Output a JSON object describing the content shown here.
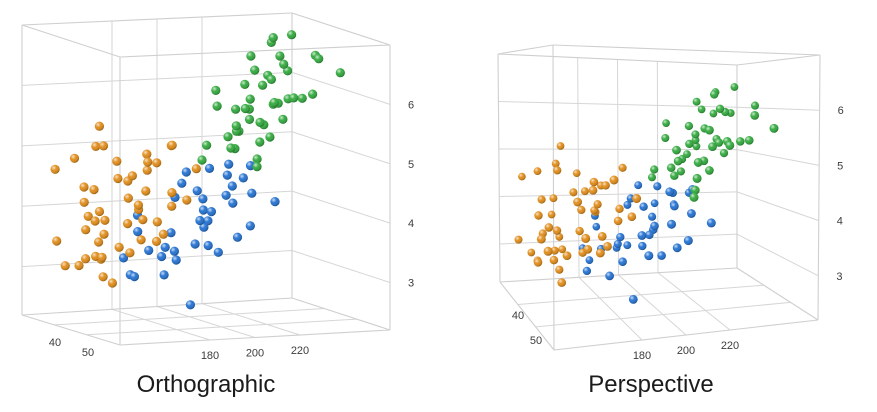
{
  "chart_data": [
    {
      "type": "scatter",
      "title": "Orthographic",
      "projection": "orthographic",
      "x_ticks": [
        180,
        200,
        220
      ],
      "z_ticks": [
        40,
        50
      ],
      "y_ticks": [
        3,
        4,
        5,
        6
      ],
      "grid": true,
      "series": [
        {
          "color": "#E08A14",
          "points": [
            [
              146,
              4.7
            ],
            [
              150,
              4.5
            ],
            [
              148,
              4.2
            ],
            [
              152,
              4.9
            ],
            [
              156,
              5.2
            ],
            [
              160,
              4.8
            ],
            [
              158,
              4.4
            ],
            [
              154,
              4.0
            ],
            [
              162,
              4.1
            ],
            [
              166,
              4.6
            ],
            [
              170,
              5.1
            ],
            [
              164,
              5.4
            ],
            [
              168,
              4.3
            ],
            [
              172,
              4.0
            ],
            [
              174,
              4.5
            ],
            [
              178,
              4.9
            ],
            [
              176,
              5.3
            ],
            [
              180,
              4.7
            ],
            [
              182,
              4.2
            ],
            [
              160,
              3.9
            ],
            [
              150,
              3.8
            ],
            [
              156,
              3.6
            ],
            [
              162,
              3.5
            ],
            [
              166,
              3.9
            ],
            [
              170,
              3.7
            ],
            [
              158,
              3.3
            ],
            [
              152,
              3.4
            ],
            [
              144,
              3.9
            ],
            [
              148,
              3.2
            ],
            [
              154,
              3.0
            ],
            [
              164,
              3.2
            ],
            [
              168,
              3.4
            ],
            [
              174,
              3.8
            ],
            [
              178,
              4.1
            ],
            [
              184,
              4.4
            ],
            [
              186,
              4.9
            ],
            [
              190,
              5.1
            ],
            [
              188,
              4.3
            ],
            [
              172,
              4.8
            ],
            [
              176,
              4.4
            ],
            [
              168,
              5.0
            ],
            [
              160,
              5.1
            ],
            [
              146,
              4.3
            ],
            [
              142,
              4.1
            ],
            [
              140,
              3.6
            ],
            [
              144,
              3.4
            ],
            [
              150,
              3.1
            ],
            [
              158,
              3.0
            ],
            [
              166,
              3.7
            ],
            [
              180,
              4.0
            ]
          ]
        },
        {
          "color": "#1F6FD1",
          "points": [
            [
              180,
              3.9
            ],
            [
              186,
              3.7
            ],
            [
              190,
              4.0
            ],
            [
              194,
              4.2
            ],
            [
              198,
              3.8
            ],
            [
              202,
              4.3
            ],
            [
              204,
              4.0
            ],
            [
              208,
              4.5
            ],
            [
              210,
              4.1
            ],
            [
              212,
              4.6
            ],
            [
              214,
              4.4
            ],
            [
              200,
              4.6
            ],
            [
              196,
              4.4
            ],
            [
              192,
              3.6
            ],
            [
              188,
              3.4
            ],
            [
              184,
              3.3
            ],
            [
              182,
              3.6
            ],
            [
              178,
              3.4
            ],
            [
              176,
              3.1
            ],
            [
              190,
              3.2
            ],
            [
              196,
              3.5
            ],
            [
              206,
              3.7
            ],
            [
              216,
              4.2
            ],
            [
              218,
              4.8
            ],
            [
              220,
              4.3
            ],
            [
              206,
              4.7
            ],
            [
              198,
              4.1
            ],
            [
              174,
              3.2
            ],
            [
              170,
              3.0
            ],
            [
              186,
              2.6
            ],
            [
              194,
              3.3
            ],
            [
              200,
              3.9
            ],
            [
              210,
              3.9
            ],
            [
              222,
              4.5
            ],
            [
              202,
              3.4
            ],
            [
              178,
              2.9
            ],
            [
              192,
              4.5
            ],
            [
              204,
              4.9
            ]
          ]
        },
        {
          "color": "#2EA83A",
          "points": [
            [
              206,
              4.8
            ],
            [
              210,
              5.1
            ],
            [
              214,
              5.3
            ],
            [
              218,
              5.0
            ],
            [
              222,
              5.5
            ],
            [
              226,
              5.2
            ],
            [
              220,
              5.7
            ],
            [
              224,
              5.9
            ],
            [
              228,
              5.6
            ],
            [
              232,
              5.8
            ],
            [
              230,
              6.0
            ],
            [
              236,
              5.7
            ],
            [
              240,
              5.9
            ],
            [
              234,
              6.2
            ],
            [
              238,
              6.4
            ],
            [
              242,
              6.0
            ],
            [
              246,
              6.2
            ],
            [
              226,
              6.1
            ],
            [
              216,
              5.6
            ],
            [
              212,
              5.7
            ],
            [
              208,
              5.3
            ],
            [
              212,
              4.9
            ],
            [
              218,
              5.3
            ],
            [
              224,
              5.3
            ],
            [
              230,
              5.4
            ],
            [
              236,
              5.5
            ],
            [
              222,
              6.3
            ],
            [
              228,
              6.5
            ],
            [
              232,
              6.6
            ],
            [
              250,
              6.4
            ],
            [
              254,
              6.5
            ],
            [
              210,
              5.5
            ],
            [
              216,
              5.9
            ],
            [
              220,
              6.1
            ],
            [
              244,
              6.6
            ],
            [
              238,
              6.7
            ],
            [
              230,
              6.9
            ],
            [
              214,
              5.0
            ],
            [
              226,
              5.8
            ],
            [
              234,
              5.9
            ],
            [
              240,
              6.1
            ],
            [
              204,
              5.1
            ],
            [
              208,
              5.8
            ],
            [
              248,
              6.8
            ]
          ]
        }
      ]
    },
    {
      "type": "scatter",
      "title": "Perspective",
      "projection": "perspective",
      "x_ticks": [
        180,
        200,
        220
      ],
      "z_ticks": [
        40,
        50
      ],
      "y_ticks": [
        3,
        4,
        5,
        6
      ],
      "grid": true,
      "series": [
        {
          "color": "#E08A14",
          "points": [
            [
              146,
              4.7
            ],
            [
              150,
              4.5
            ],
            [
              148,
              4.2
            ],
            [
              152,
              4.9
            ],
            [
              156,
              5.2
            ],
            [
              160,
              4.8
            ],
            [
              158,
              4.4
            ],
            [
              154,
              4.0
            ],
            [
              162,
              4.1
            ],
            [
              166,
              4.6
            ],
            [
              170,
              5.1
            ],
            [
              164,
              5.4
            ],
            [
              168,
              4.3
            ],
            [
              172,
              4.0
            ],
            [
              174,
              4.5
            ],
            [
              178,
              4.9
            ],
            [
              176,
              5.3
            ],
            [
              180,
              4.7
            ],
            [
              182,
              4.2
            ],
            [
              160,
              3.9
            ],
            [
              150,
              3.8
            ],
            [
              156,
              3.6
            ],
            [
              162,
              3.5
            ],
            [
              166,
              3.9
            ],
            [
              170,
              3.7
            ],
            [
              158,
              3.3
            ],
            [
              152,
              3.4
            ],
            [
              144,
              3.9
            ],
            [
              148,
              3.2
            ],
            [
              154,
              3.0
            ],
            [
              164,
              3.2
            ],
            [
              168,
              3.4
            ],
            [
              174,
              3.8
            ],
            [
              178,
              4.1
            ],
            [
              184,
              4.4
            ],
            [
              186,
              4.9
            ],
            [
              190,
              5.1
            ],
            [
              188,
              4.3
            ],
            [
              172,
              4.8
            ],
            [
              176,
              4.4
            ],
            [
              168,
              5.0
            ],
            [
              160,
              5.1
            ],
            [
              146,
              4.3
            ],
            [
              142,
              4.1
            ],
            [
              140,
              3.6
            ],
            [
              144,
              3.4
            ],
            [
              150,
              3.1
            ],
            [
              158,
              3.0
            ],
            [
              166,
              3.7
            ],
            [
              180,
              4.0
            ]
          ]
        },
        {
          "color": "#1F6FD1",
          "points": [
            [
              180,
              3.9
            ],
            [
              186,
              3.7
            ],
            [
              190,
              4.0
            ],
            [
              194,
              4.2
            ],
            [
              198,
              3.8
            ],
            [
              202,
              4.3
            ],
            [
              204,
              4.0
            ],
            [
              208,
              4.5
            ],
            [
              210,
              4.1
            ],
            [
              212,
              4.6
            ],
            [
              214,
              4.4
            ],
            [
              200,
              4.6
            ],
            [
              196,
              4.4
            ],
            [
              192,
              3.6
            ],
            [
              188,
              3.4
            ],
            [
              184,
              3.3
            ],
            [
              182,
              3.6
            ],
            [
              178,
              3.4
            ],
            [
              176,
              3.1
            ],
            [
              190,
              3.2
            ],
            [
              196,
              3.5
            ],
            [
              206,
              3.7
            ],
            [
              216,
              4.2
            ],
            [
              218,
              4.8
            ],
            [
              220,
              4.3
            ],
            [
              206,
              4.7
            ],
            [
              198,
              4.1
            ],
            [
              174,
              3.2
            ],
            [
              170,
              3.0
            ],
            [
              186,
              2.6
            ],
            [
              194,
              3.3
            ],
            [
              200,
              3.9
            ],
            [
              210,
              3.9
            ],
            [
              222,
              4.5
            ],
            [
              202,
              3.4
            ],
            [
              178,
              2.9
            ],
            [
              192,
              4.5
            ],
            [
              204,
              4.9
            ]
          ]
        },
        {
          "color": "#2EA83A",
          "points": [
            [
              206,
              4.8
            ],
            [
              210,
              5.1
            ],
            [
              214,
              5.3
            ],
            [
              218,
              5.0
            ],
            [
              222,
              5.5
            ],
            [
              226,
              5.2
            ],
            [
              220,
              5.7
            ],
            [
              224,
              5.9
            ],
            [
              228,
              5.6
            ],
            [
              232,
              5.8
            ],
            [
              230,
              6.0
            ],
            [
              236,
              5.7
            ],
            [
              240,
              5.9
            ],
            [
              234,
              6.2
            ],
            [
              238,
              6.4
            ],
            [
              242,
              6.0
            ],
            [
              246,
              6.2
            ],
            [
              226,
              6.1
            ],
            [
              216,
              5.6
            ],
            [
              212,
              5.7
            ],
            [
              208,
              5.3
            ],
            [
              212,
              4.9
            ],
            [
              218,
              5.3
            ],
            [
              224,
              5.3
            ],
            [
              230,
              5.4
            ],
            [
              236,
              5.5
            ],
            [
              222,
              6.3
            ],
            [
              228,
              6.5
            ],
            [
              232,
              6.6
            ],
            [
              250,
              6.4
            ],
            [
              254,
              6.5
            ],
            [
              210,
              5.5
            ],
            [
              216,
              5.9
            ],
            [
              220,
              6.1
            ],
            [
              244,
              6.6
            ],
            [
              238,
              6.7
            ],
            [
              230,
              6.9
            ],
            [
              214,
              5.0
            ],
            [
              226,
              5.8
            ],
            [
              234,
              5.9
            ],
            [
              240,
              6.1
            ],
            [
              204,
              5.1
            ],
            [
              208,
              5.8
            ],
            [
              248,
              6.8
            ]
          ]
        }
      ]
    }
  ]
}
